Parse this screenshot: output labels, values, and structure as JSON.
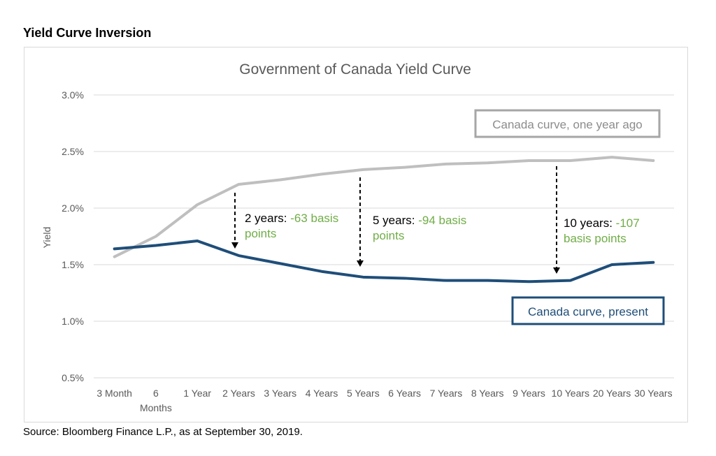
{
  "heading": "Yield Curve Inversion",
  "source": "Source: Bloomberg Finance L.P., as at September 30, 2019.",
  "colors": {
    "present": "#1f4e79",
    "year_ago": "#bfbfbf",
    "grid": "#d9d9d9",
    "highlight": "#70ad47",
    "text": "#595959"
  },
  "chart_data": {
    "type": "line",
    "title": "Government of Canada Yield Curve",
    "ylabel": "Yield",
    "xlabel": "",
    "categories": [
      "3 Month",
      "6 Months",
      "1 Year",
      "2 Years",
      "3 Years",
      "4 Years",
      "5 Years",
      "6 Years",
      "7 Years",
      "8 Years",
      "9 Years",
      "10 Years",
      "20 Years",
      "30 Years"
    ],
    "ylim": [
      0.5,
      3.0
    ],
    "yticks": [
      "0.5%",
      "1.0%",
      "1.5%",
      "2.0%",
      "2.5%",
      "3.0%"
    ],
    "ytick_values": [
      0.5,
      1.0,
      1.5,
      2.0,
      2.5,
      3.0
    ],
    "grid": true,
    "series": [
      {
        "name": "Canada curve, one year ago",
        "color": "#bfbfbf",
        "values": [
          1.57,
          1.75,
          2.03,
          2.21,
          2.25,
          2.3,
          2.34,
          2.36,
          2.39,
          2.4,
          2.42,
          2.42,
          2.45,
          2.42
        ]
      },
      {
        "name": "Canada curve, present",
        "color": "#1f4e79",
        "values": [
          1.64,
          1.67,
          1.71,
          1.58,
          1.51,
          1.44,
          1.39,
          1.38,
          1.36,
          1.36,
          1.35,
          1.36,
          1.5,
          1.52
        ]
      }
    ],
    "annotations": [
      {
        "category": "2 Years",
        "label": "2 years:",
        "value": "-63 basis",
        "cont": "points"
      },
      {
        "category": "5 Years",
        "label": "5 years:",
        "value": "-94 basis",
        "cont": "points"
      },
      {
        "category": "10 Years",
        "label": "10 years:",
        "value": "-107",
        "cont": "basis points"
      }
    ]
  }
}
